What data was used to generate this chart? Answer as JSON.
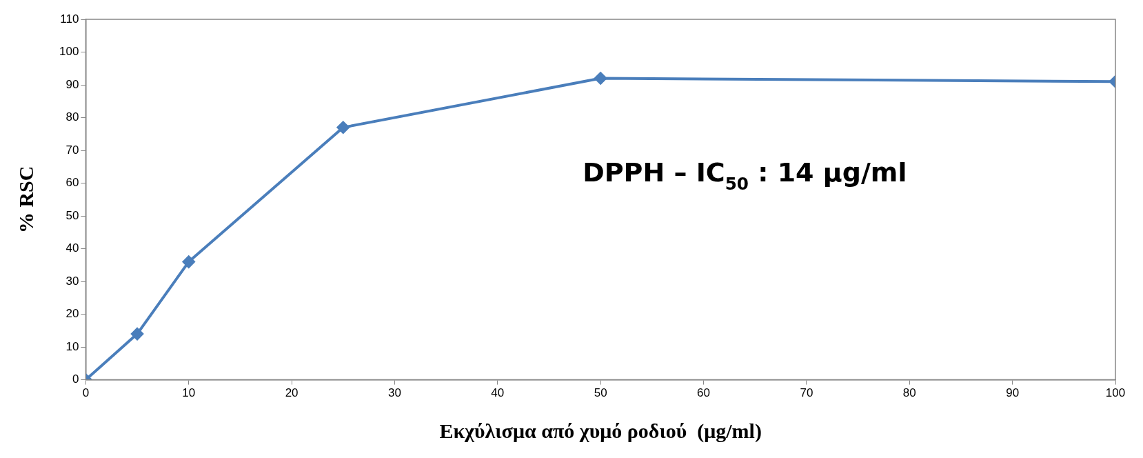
{
  "chart_data": {
    "type": "line",
    "xlabel": "Εκχύλισμα από χυμό ροδιού  (μg/ml)",
    "ylabel": "% RSC",
    "annotations": [
      "DPPH – IC$_{50}$ : 14 μg/ml"
    ],
    "x": [
      0,
      5,
      10,
      25,
      50,
      100
    ],
    "series": [
      {
        "color": "#4a7ebb",
        "values": [
          0,
          14,
          36,
          77,
          92,
          91
        ]
      }
    ],
    "xlim": [
      0,
      100
    ],
    "xticks": [
      0,
      10,
      20,
      30,
      40,
      50,
      60,
      70,
      80,
      90,
      100
    ],
    "ylim": [
      0,
      110
    ],
    "yticks": [
      0,
      10,
      20,
      30,
      40,
      50,
      60,
      70,
      80,
      90,
      100,
      110
    ],
    "grid": false,
    "legend": false,
    "marker": "diamond",
    "line_style": "solid"
  }
}
